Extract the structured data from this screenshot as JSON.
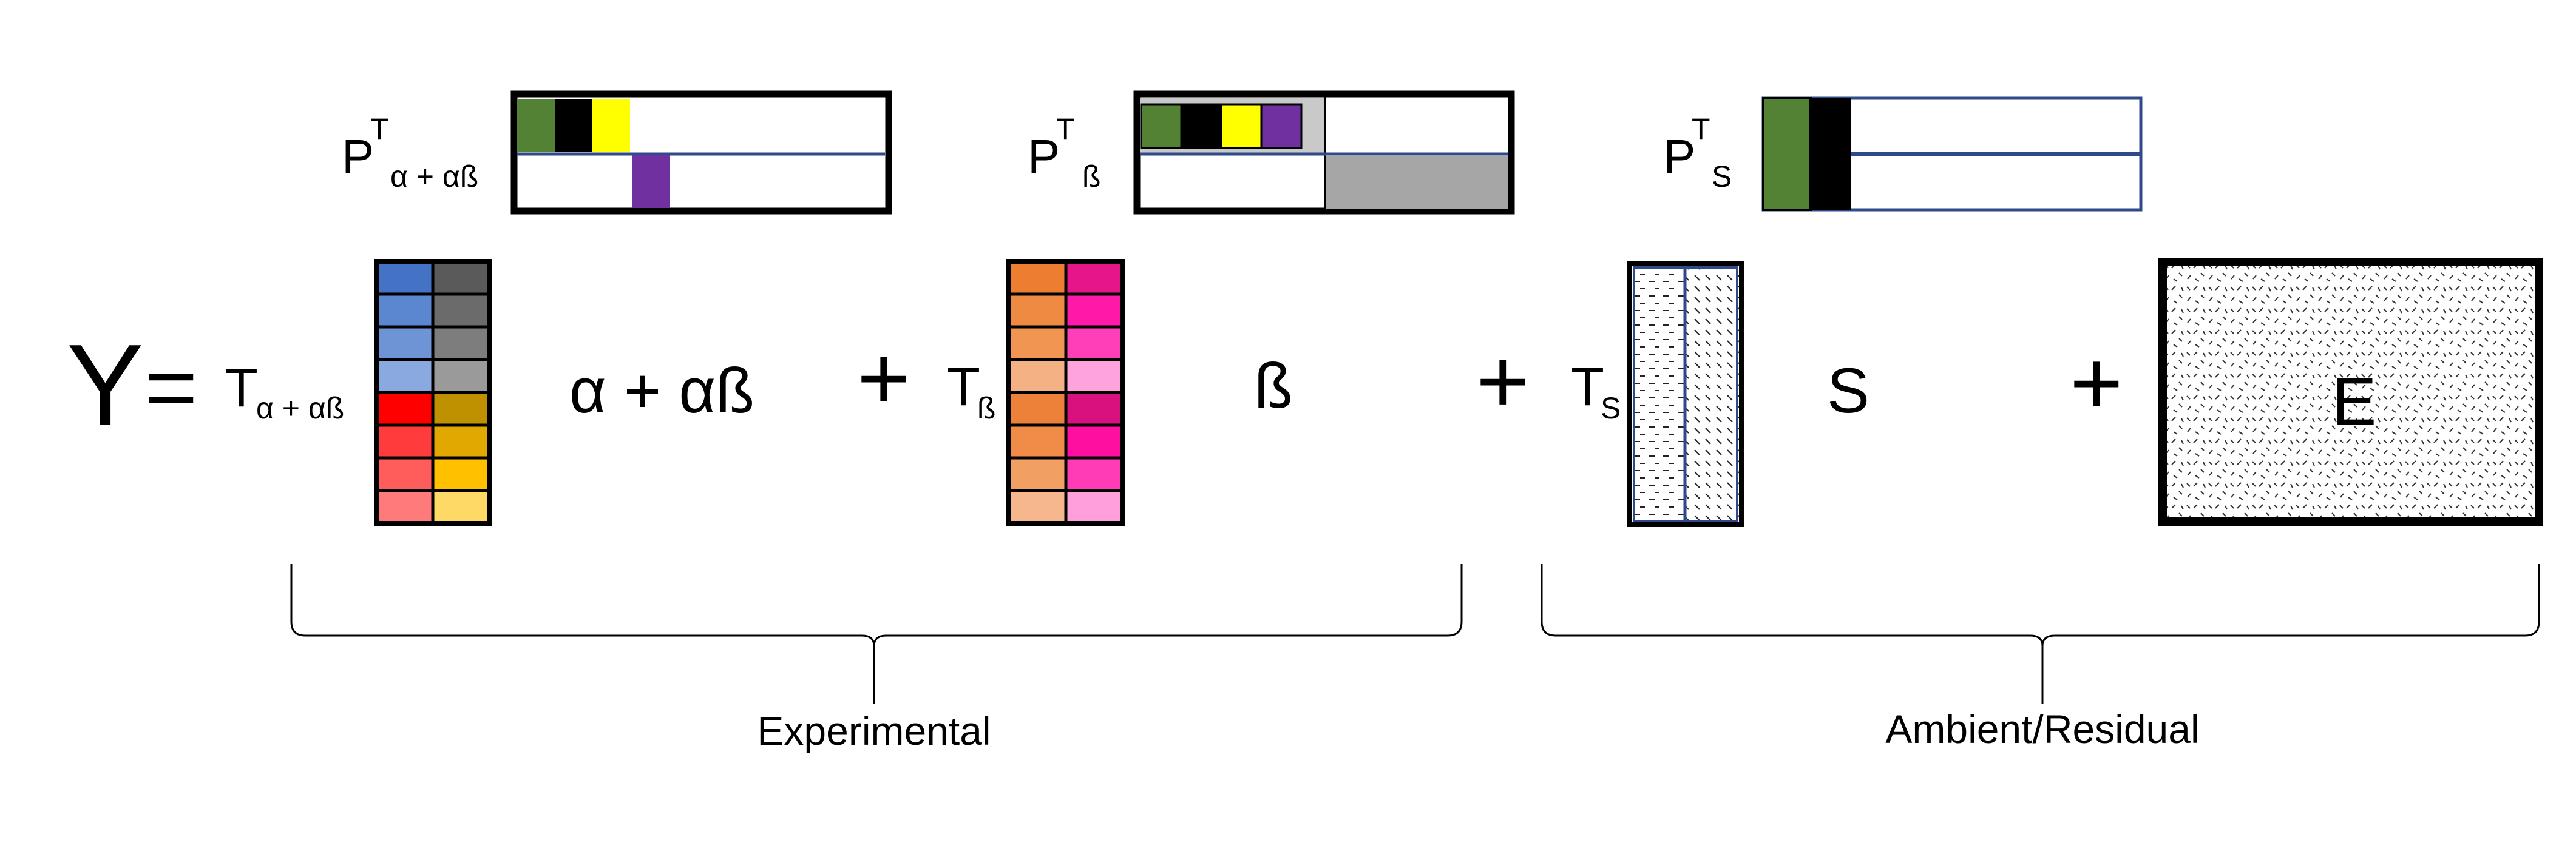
{
  "equation": {
    "lhs": "Y",
    "equals": "=",
    "plus": "+",
    "T_letter": "T",
    "P_letter": "P",
    "transpose": "T",
    "terms": [
      {
        "sub": "α + αß",
        "middle": "α + αß"
      },
      {
        "sub": "ß",
        "middle": "ß"
      },
      {
        "sub": "S",
        "middle": "S"
      },
      {
        "error": "E"
      }
    ]
  },
  "braces": {
    "left_label": "Experimental",
    "right_label": "Ambient/Residual"
  },
  "colors": {
    "T_alpha_col1": [
      "#4472c4",
      "#5b86d0",
      "#6f94d5",
      "#8aa9e0",
      "#ff0000",
      "#ff3b3b",
      "#ff5c5c",
      "#ff7b7b"
    ],
    "T_alpha_col2": [
      "#5a5a5a",
      "#6b6b6b",
      "#7d7d7d",
      "#9a9a9a",
      "#bf9000",
      "#e0a800",
      "#ffc000",
      "#ffd966"
    ],
    "T_beta_col1": [
      "#ed7d31",
      "#ef8a43",
      "#f19553",
      "#f4b183",
      "#ee8139",
      "#f08c48",
      "#f29f63",
      "#f6b78c"
    ],
    "T_beta_col2": [
      "#e6168a",
      "#ff19a8",
      "#ff3fb8",
      "#ffa3dc",
      "#d9117e",
      "#ff0fa0",
      "#ff3bb5",
      "#ffa0da"
    ],
    "green": "#548235",
    "black": "#000000",
    "yellow": "#ffff00",
    "purple": "#7030a0",
    "gray": "#a6a6a6",
    "light_gray": "#c9c9c9",
    "navy": "#2f4a8a"
  }
}
